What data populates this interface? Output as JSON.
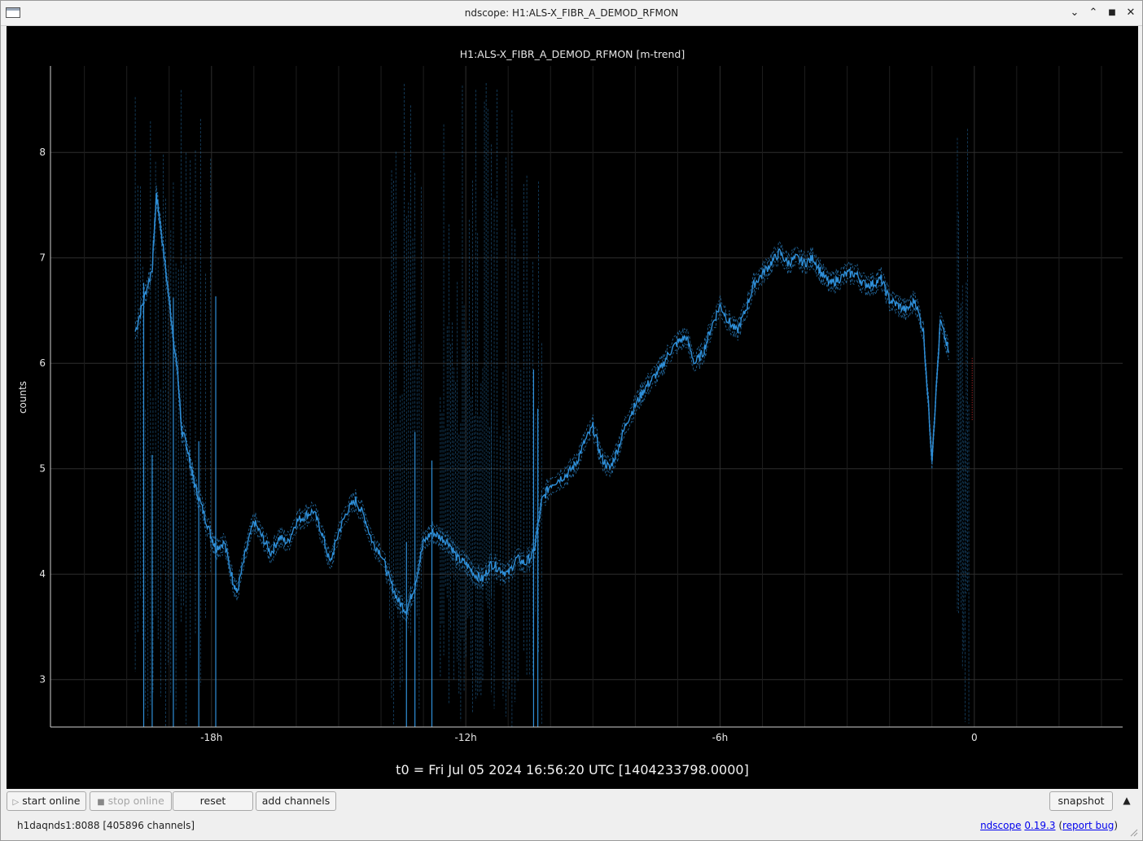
{
  "window": {
    "title": "ndscope: H1:ALS-X_FIBR_A_DEMOD_RFMON",
    "controls": {
      "minimize": "⌄",
      "maximize": "⌃",
      "restore": "■",
      "close": "✕"
    }
  },
  "plot": {
    "title": "H1:ALS-X_FIBR_A_DEMOD_RFMON [m-trend]",
    "ylabel": "counts",
    "t0_label": "t0 = Fri Jul 05 2024 16:56:20 UTC [1404233798.0000]"
  },
  "chart_data": {
    "type": "line",
    "title": "H1:ALS-X_FIBR_A_DEMOD_RFMON [m-trend]",
    "xlabel": "",
    "ylabel": "counts",
    "x_unit": "hours relative to t0",
    "xlim": [
      -21.8,
      3.5
    ],
    "ylim": [
      2.55,
      8.82
    ],
    "xticks": [
      -18,
      -12,
      -6,
      0
    ],
    "xtick_labels": [
      "-18h",
      "-12h",
      "-6h",
      "0"
    ],
    "yticks": [
      3,
      4,
      5,
      6,
      7,
      8
    ],
    "grid": true,
    "series": [
      {
        "style": "mean (solid), with min/max envelope (dashed)",
        "color": "#2f8fd8",
        "points": [
          [
            -19.8,
            6.3
          ],
          [
            -19.6,
            6.6
          ],
          [
            -19.4,
            6.9
          ],
          [
            -19.3,
            7.6
          ],
          [
            -19.2,
            7.3
          ],
          [
            -19.0,
            6.6
          ],
          [
            -18.8,
            5.9
          ],
          [
            -18.7,
            5.35
          ],
          [
            -18.6,
            5.25
          ],
          [
            -18.5,
            5.05
          ],
          [
            -18.4,
            4.85
          ],
          [
            -18.2,
            4.6
          ],
          [
            -18.0,
            4.35
          ],
          [
            -17.9,
            4.25
          ],
          [
            -17.7,
            4.3
          ],
          [
            -17.5,
            3.95
          ],
          [
            -17.4,
            3.82
          ],
          [
            -17.2,
            4.2
          ],
          [
            -17.0,
            4.5
          ],
          [
            -16.8,
            4.35
          ],
          [
            -16.6,
            4.2
          ],
          [
            -16.4,
            4.35
          ],
          [
            -16.2,
            4.3
          ],
          [
            -16.0,
            4.5
          ],
          [
            -15.8,
            4.55
          ],
          [
            -15.6,
            4.6
          ],
          [
            -15.4,
            4.4
          ],
          [
            -15.2,
            4.1
          ],
          [
            -15.0,
            4.4
          ],
          [
            -14.8,
            4.6
          ],
          [
            -14.6,
            4.7
          ],
          [
            -14.4,
            4.55
          ],
          [
            -14.2,
            4.3
          ],
          [
            -14.0,
            4.2
          ],
          [
            -13.8,
            3.95
          ],
          [
            -13.6,
            3.75
          ],
          [
            -13.4,
            3.65
          ],
          [
            -13.2,
            3.9
          ],
          [
            -13.0,
            4.3
          ],
          [
            -12.8,
            4.4
          ],
          [
            -12.6,
            4.35
          ],
          [
            -12.4,
            4.3
          ],
          [
            -12.2,
            4.15
          ],
          [
            -12.0,
            4.1
          ],
          [
            -11.8,
            4.0
          ],
          [
            -11.6,
            3.95
          ],
          [
            -11.4,
            4.1
          ],
          [
            -11.2,
            4.05
          ],
          [
            -11.0,
            4.0
          ],
          [
            -10.8,
            4.15
          ],
          [
            -10.6,
            4.1
          ],
          [
            -10.4,
            4.2
          ],
          [
            -10.2,
            4.7
          ],
          [
            -10.0,
            4.85
          ],
          [
            -9.8,
            4.9
          ],
          [
            -9.6,
            4.95
          ],
          [
            -9.4,
            5.05
          ],
          [
            -9.2,
            5.25
          ],
          [
            -9.0,
            5.4
          ],
          [
            -8.8,
            5.1
          ],
          [
            -8.6,
            5.0
          ],
          [
            -8.4,
            5.2
          ],
          [
            -8.2,
            5.45
          ],
          [
            -8.0,
            5.6
          ],
          [
            -7.8,
            5.75
          ],
          [
            -7.6,
            5.85
          ],
          [
            -7.4,
            5.95
          ],
          [
            -7.2,
            6.1
          ],
          [
            -7.0,
            6.2
          ],
          [
            -6.8,
            6.25
          ],
          [
            -6.6,
            6.0
          ],
          [
            -6.4,
            6.1
          ],
          [
            -6.2,
            6.35
          ],
          [
            -6.0,
            6.55
          ],
          [
            -5.8,
            6.4
          ],
          [
            -5.6,
            6.3
          ],
          [
            -5.4,
            6.5
          ],
          [
            -5.2,
            6.75
          ],
          [
            -5.0,
            6.85
          ],
          [
            -4.8,
            6.95
          ],
          [
            -4.6,
            7.05
          ],
          [
            -4.4,
            6.95
          ],
          [
            -4.2,
            7.0
          ],
          [
            -4.0,
            6.95
          ],
          [
            -3.8,
            7.0
          ],
          [
            -3.6,
            6.85
          ],
          [
            -3.4,
            6.75
          ],
          [
            -3.2,
            6.8
          ],
          [
            -3.0,
            6.85
          ],
          [
            -2.8,
            6.85
          ],
          [
            -2.6,
            6.75
          ],
          [
            -2.4,
            6.75
          ],
          [
            -2.2,
            6.8
          ],
          [
            -2.0,
            6.6
          ],
          [
            -1.8,
            6.55
          ],
          [
            -1.6,
            6.5
          ],
          [
            -1.4,
            6.6
          ],
          [
            -1.2,
            6.3
          ],
          [
            -1.0,
            5.1
          ],
          [
            -0.8,
            6.4
          ],
          [
            -0.6,
            6.1
          ]
        ]
      }
    ]
  },
  "toolbar": {
    "start_online": "start online",
    "stop_online": "stop online",
    "reset": "reset",
    "add_channels": "add channels",
    "snapshot": "snapshot",
    "expand": "▲"
  },
  "status": {
    "server": "h1daqnds1:8088  [405896 channels]",
    "app_name": "ndscope",
    "version": "0.19.3",
    "open_paren": " (",
    "report_bug": "report bug",
    "close_paren": ")"
  }
}
